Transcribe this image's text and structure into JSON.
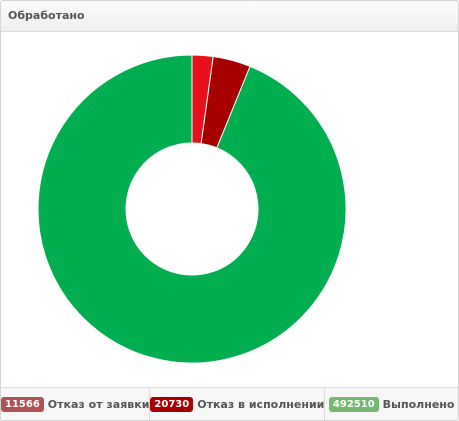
{
  "chart_data": {
    "type": "pie",
    "donut": true,
    "title": "Обработано",
    "categories": [
      "Отказ от заявки",
      "Отказ в исполнении",
      "Выполнено"
    ],
    "values": [
      11566,
      20730,
      492510
    ],
    "colors": [
      "#e8111b",
      "#a60000",
      "#00ad4f"
    ],
    "badge_colors": [
      "#b05252",
      "#a30000",
      "#74b96f"
    ]
  }
}
